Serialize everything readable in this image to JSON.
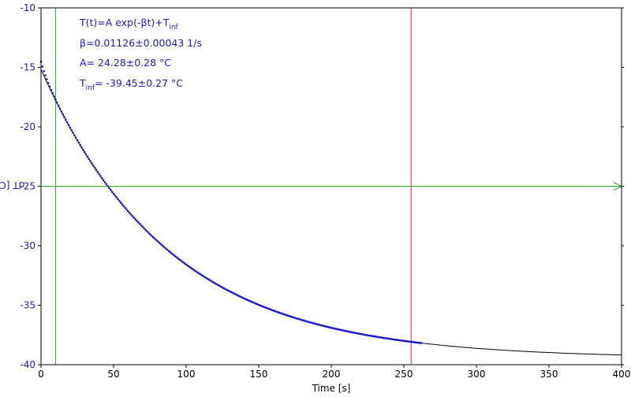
{
  "chart_data": {
    "type": "scatter",
    "xlabel": "Time [s]",
    "ylabel": "dT [C]",
    "xlim": [
      0,
      400
    ],
    "ylim": [
      -40,
      -10
    ],
    "x_ticks": [
      0,
      50,
      100,
      150,
      200,
      250,
      300,
      350,
      400
    ],
    "y_ticks": [
      -10,
      -15,
      -20,
      -25,
      -30,
      -35,
      -40
    ],
    "grid": false,
    "fit": {
      "beta": 0.01126,
      "A": 24.28,
      "T_inf": -39.45,
      "x_range": [
        0,
        400
      ]
    },
    "measured": {
      "x_range": [
        0,
        262
      ],
      "step": 1
    },
    "markers": {
      "vertical_green_x": 10,
      "vertical_red_x": 255,
      "horizontal_green_y": -25
    },
    "annotations": [
      {
        "main": "T(t)=A exp(-βt)+T",
        "sub": "inf",
        "tail": ""
      },
      {
        "main": "β=0.01126±0.00043 1/s",
        "sub": "",
        "tail": ""
      },
      {
        "main": "A= 24.28±0.28 °C",
        "sub": "",
        "tail": ""
      },
      {
        "main": "T",
        "sub": "inf",
        "tail": "= -39.45±0.27 °C"
      }
    ]
  },
  "colors": {
    "data": "#1a1acc",
    "fit": "#000000",
    "green_line": "#22aa22",
    "red_line": "#ee2222",
    "axis": "#000000"
  }
}
